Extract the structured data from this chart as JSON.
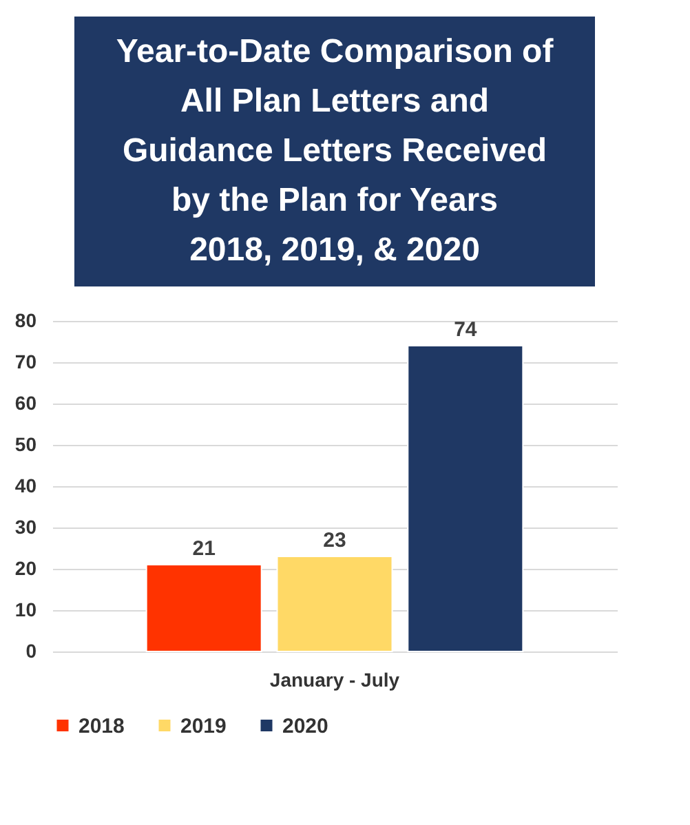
{
  "chart_data": {
    "type": "bar",
    "title": "Year-to-Date Comparison of All Plan Letters and Guidance Letters Received by the Plan for Years 2018, 2019, & 2020",
    "categories": [
      "January - July"
    ],
    "series": [
      {
        "name": "2018",
        "color": "#ff3300",
        "values": [
          21
        ]
      },
      {
        "name": "2019",
        "color": "#ffd966",
        "values": [
          23
        ]
      },
      {
        "name": "2020",
        "color": "#1f3864",
        "values": [
          74
        ]
      }
    ],
    "ylim": [
      0,
      80
    ],
    "yticks": [
      0,
      10,
      20,
      30,
      40,
      50,
      60,
      70,
      80
    ],
    "grid": "y",
    "legend": "bottom",
    "data_labels": true
  }
}
